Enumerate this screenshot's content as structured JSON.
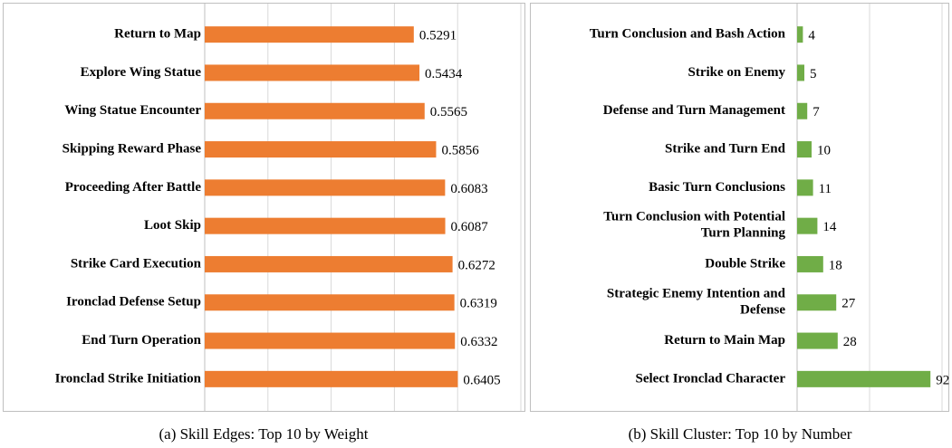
{
  "chart_data": [
    {
      "type": "bar",
      "orientation": "horizontal",
      "title": "(a) Skill Edges: Top 10 by Weight",
      "categories": [
        "Return to Map",
        "Explore Wing Statue",
        "Wing Statue Encounter",
        "Skipping Reward Phase",
        "Proceeding After Battle",
        "Loot Skip",
        "Strike Card Execution",
        "Ironclad Defense Setup",
        "End Turn Operation",
        "Ironclad Strike Initiation"
      ],
      "values": [
        0.5291,
        0.5434,
        0.5565,
        0.5856,
        0.6083,
        0.6087,
        0.6272,
        0.6319,
        0.6332,
        0.6405
      ],
      "color": "#ed7d31",
      "xlim": [
        0,
        0.8
      ],
      "xticks": [
        0,
        0.16,
        0.32,
        0.48,
        0.64,
        0.8
      ],
      "grid": true
    },
    {
      "type": "bar",
      "orientation": "horizontal",
      "title": "(b) Skill Cluster: Top 10 by Number",
      "categories": [
        "Turn Conclusion and Bash Action",
        "Strike on Enemy",
        "Defense and Turn Management",
        "Strike and Turn End",
        "Basic Turn Conclusions",
        "Turn Conclusion with Potential Turn Planning",
        "Double Strike",
        "Strategic Enemy Intention and Defense",
        "Return to Main Map",
        "Select Ironclad Character"
      ],
      "values": [
        4,
        5,
        7,
        10,
        11,
        14,
        18,
        27,
        28,
        92
      ],
      "color": "#70ad47",
      "xlim": [
        0,
        100
      ],
      "xticks": [
        0,
        50,
        100
      ],
      "grid": true
    }
  ]
}
